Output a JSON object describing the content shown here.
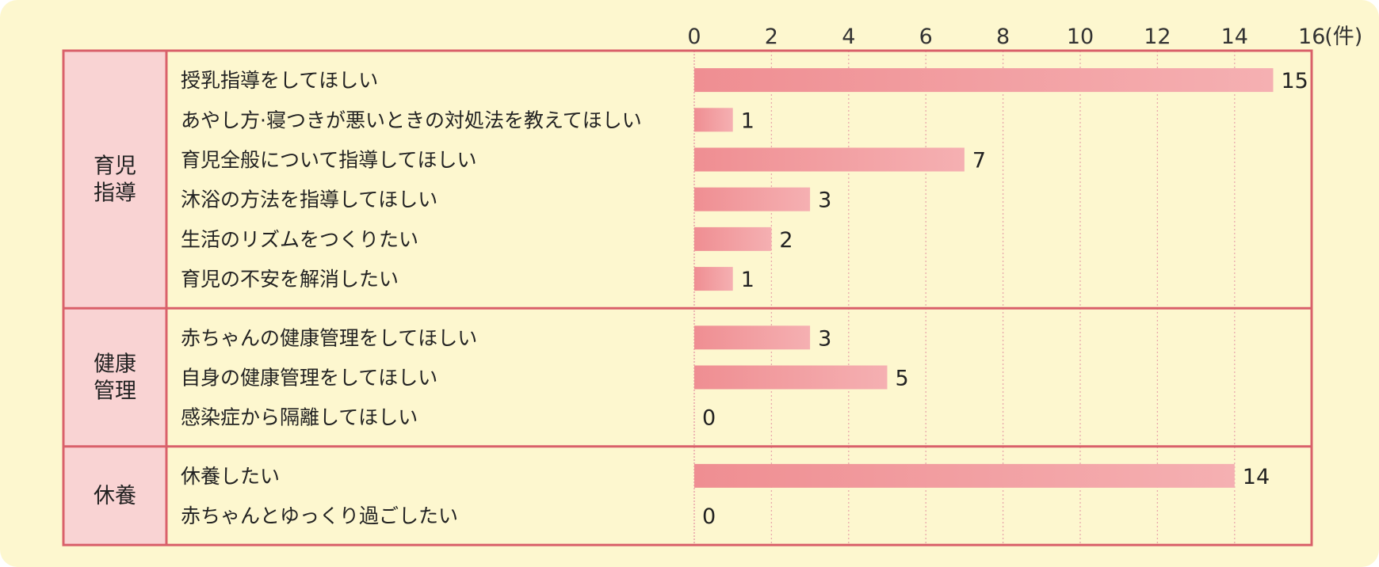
{
  "chart_data": {
    "type": "bar",
    "orientation": "horizontal",
    "unit": "(件)",
    "xlim": [
      0,
      16
    ],
    "x_ticks": [
      0,
      2,
      4,
      6,
      8,
      10,
      12,
      14,
      16
    ],
    "grid": true,
    "groups": [
      {
        "name": "育児\n指導",
        "items": [
          {
            "label": "授乳指導をしてほしい",
            "value": 15
          },
          {
            "label": "あやし方·寝つきが悪いときの対処法を教えてほしい",
            "value": 1
          },
          {
            "label": "育児全般について指導してほしい",
            "value": 7
          },
          {
            "label": "沐浴の方法を指導してほしい",
            "value": 3
          },
          {
            "label": "生活のリズムをつくりたい",
            "value": 2
          },
          {
            "label": "育児の不安を解消したい",
            "value": 1
          }
        ]
      },
      {
        "name": "健康\n管理",
        "items": [
          {
            "label": "赤ちゃんの健康管理をしてほしい",
            "value": 3
          },
          {
            "label": "自身の健康管理をしてほしい",
            "value": 5
          },
          {
            "label": "感染症から隔離してほしい",
            "value": 0
          }
        ]
      },
      {
        "name": "休養",
        "items": [
          {
            "label": "休養したい",
            "value": 14
          },
          {
            "label": "赤ちゃんとゆっくり過ごしたい",
            "value": 0
          }
        ]
      }
    ]
  },
  "colors": {
    "background": "#fdf7cf",
    "border": "#d9606a",
    "group_fill": "#f9d3d3",
    "bar_start": "#ef8e92",
    "bar_end": "#f5b0b2",
    "grid": "#e9a8ac"
  }
}
